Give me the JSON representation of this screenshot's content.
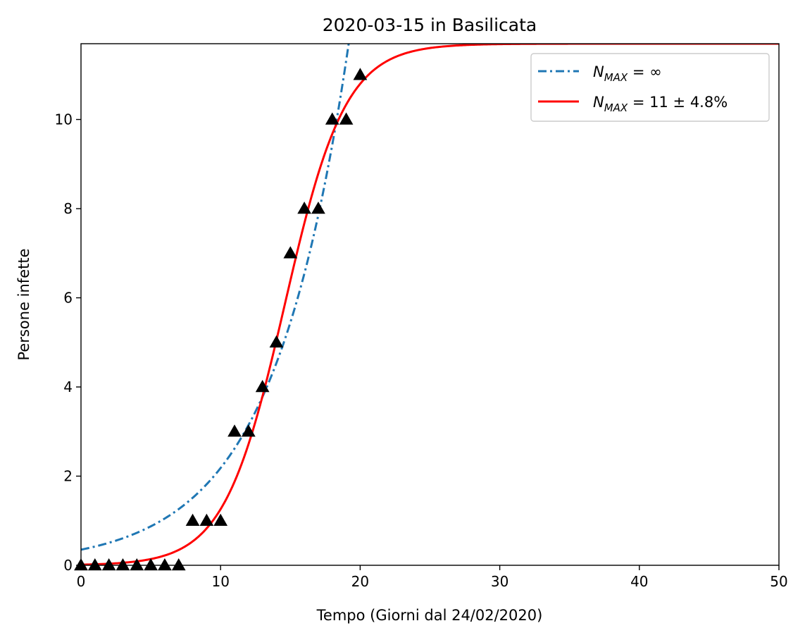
{
  "chart_data": {
    "type": "scatter",
    "title": "2020-03-15 in Basilicata",
    "xlabel": "Tempo (Giorni dal 24/02/2020)",
    "ylabel": "Persone infette",
    "xlim": [
      0,
      50
    ],
    "ylim": [
      0,
      11.7
    ],
    "xticks": [
      0,
      10,
      20,
      30,
      40,
      50
    ],
    "yticks": [
      0,
      2,
      4,
      6,
      8,
      10
    ],
    "grid": false,
    "legend_position": "top-right",
    "observed": {
      "marker": "triangle",
      "color": "#000000",
      "x": [
        0,
        1,
        2,
        3,
        4,
        5,
        6,
        7,
        8,
        9,
        10,
        11,
        12,
        13,
        14,
        15,
        16,
        17,
        18,
        19,
        20
      ],
      "y": [
        0,
        0,
        0,
        0,
        0,
        0,
        0,
        0,
        1,
        1,
        1,
        3,
        3,
        4,
        5,
        7,
        8,
        8,
        10,
        10,
        11
      ]
    },
    "series": [
      {
        "name": "N_MAX = ∞",
        "legend_main": "N",
        "legend_sub": "MAX",
        "legend_rest": " = ∞",
        "model": "exponential",
        "color": "#1f77b4",
        "style": "dashdot",
        "params": {
          "a": 0.35,
          "b": 0.183
        }
      },
      {
        "name": "N_MAX = 11 ± 4.8%",
        "legend_main": "N",
        "legend_sub": "MAX",
        "legend_rest": " = 11 ± 4.8%",
        "model": "logistic",
        "color": "#ff0000",
        "style": "solid",
        "params": {
          "K": 11.7,
          "r": 0.46,
          "t0": 14.6
        }
      }
    ]
  }
}
